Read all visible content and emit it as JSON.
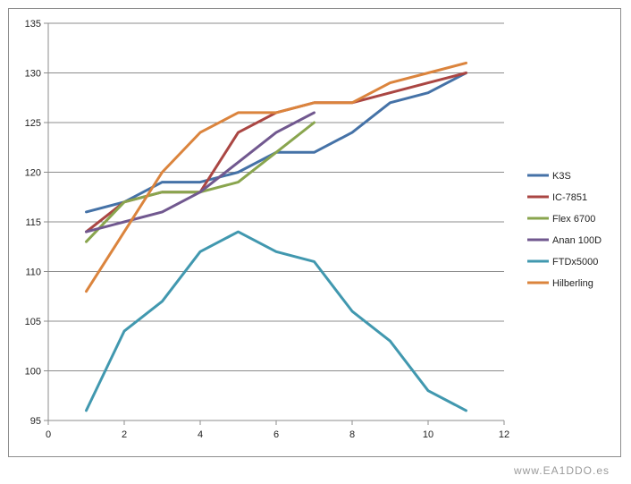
{
  "chart_data": {
    "type": "line",
    "title": "",
    "xlabel": "",
    "ylabel": "",
    "xlim": [
      0,
      12
    ],
    "ylim": [
      95,
      135
    ],
    "x_ticks": [
      0,
      2,
      4,
      6,
      8,
      10,
      12
    ],
    "y_ticks": [
      95,
      100,
      105,
      110,
      115,
      120,
      125,
      130,
      135
    ],
    "grid": "horizontal",
    "legend_position": "right",
    "series": [
      {
        "name": "K3S",
        "color": "#4572a7",
        "x": [
          1,
          2,
          3,
          4,
          5,
          6,
          7,
          8,
          9,
          10,
          11
        ],
        "y": [
          116,
          117,
          119,
          119,
          120,
          122,
          122,
          124,
          127,
          128,
          130
        ]
      },
      {
        "name": "IC-7851",
        "color": "#aa4643",
        "x": [
          1,
          2,
          3,
          4,
          5,
          6,
          7,
          8,
          9,
          10,
          11
        ],
        "y": [
          114,
          117,
          118,
          118,
          124,
          126,
          127,
          127,
          128,
          129,
          130
        ]
      },
      {
        "name": "Flex 6700",
        "color": "#89a54e",
        "x": [
          1,
          2,
          3,
          4,
          5,
          6,
          7
        ],
        "y": [
          113,
          117,
          118,
          118,
          119,
          122,
          125
        ]
      },
      {
        "name": "Anan 100D",
        "color": "#71588f",
        "x": [
          1,
          2,
          3,
          4,
          5,
          6,
          7
        ],
        "y": [
          114,
          115,
          116,
          118,
          121,
          124,
          126
        ]
      },
      {
        "name": "FTDx5000",
        "color": "#4198af",
        "x": [
          1,
          2,
          3,
          4,
          5,
          6,
          7,
          8,
          9,
          10,
          11
        ],
        "y": [
          96,
          104,
          107,
          112,
          114,
          112,
          111,
          106,
          103,
          98,
          96
        ]
      },
      {
        "name": "Hilberling",
        "color": "#db843d",
        "x": [
          1,
          2,
          3,
          4,
          5,
          6,
          7,
          8,
          9,
          10,
          11
        ],
        "y": [
          108,
          114,
          120,
          124,
          126,
          126,
          127,
          127,
          129,
          130,
          131
        ]
      }
    ]
  },
  "watermark": "www.EA1DDO.es"
}
